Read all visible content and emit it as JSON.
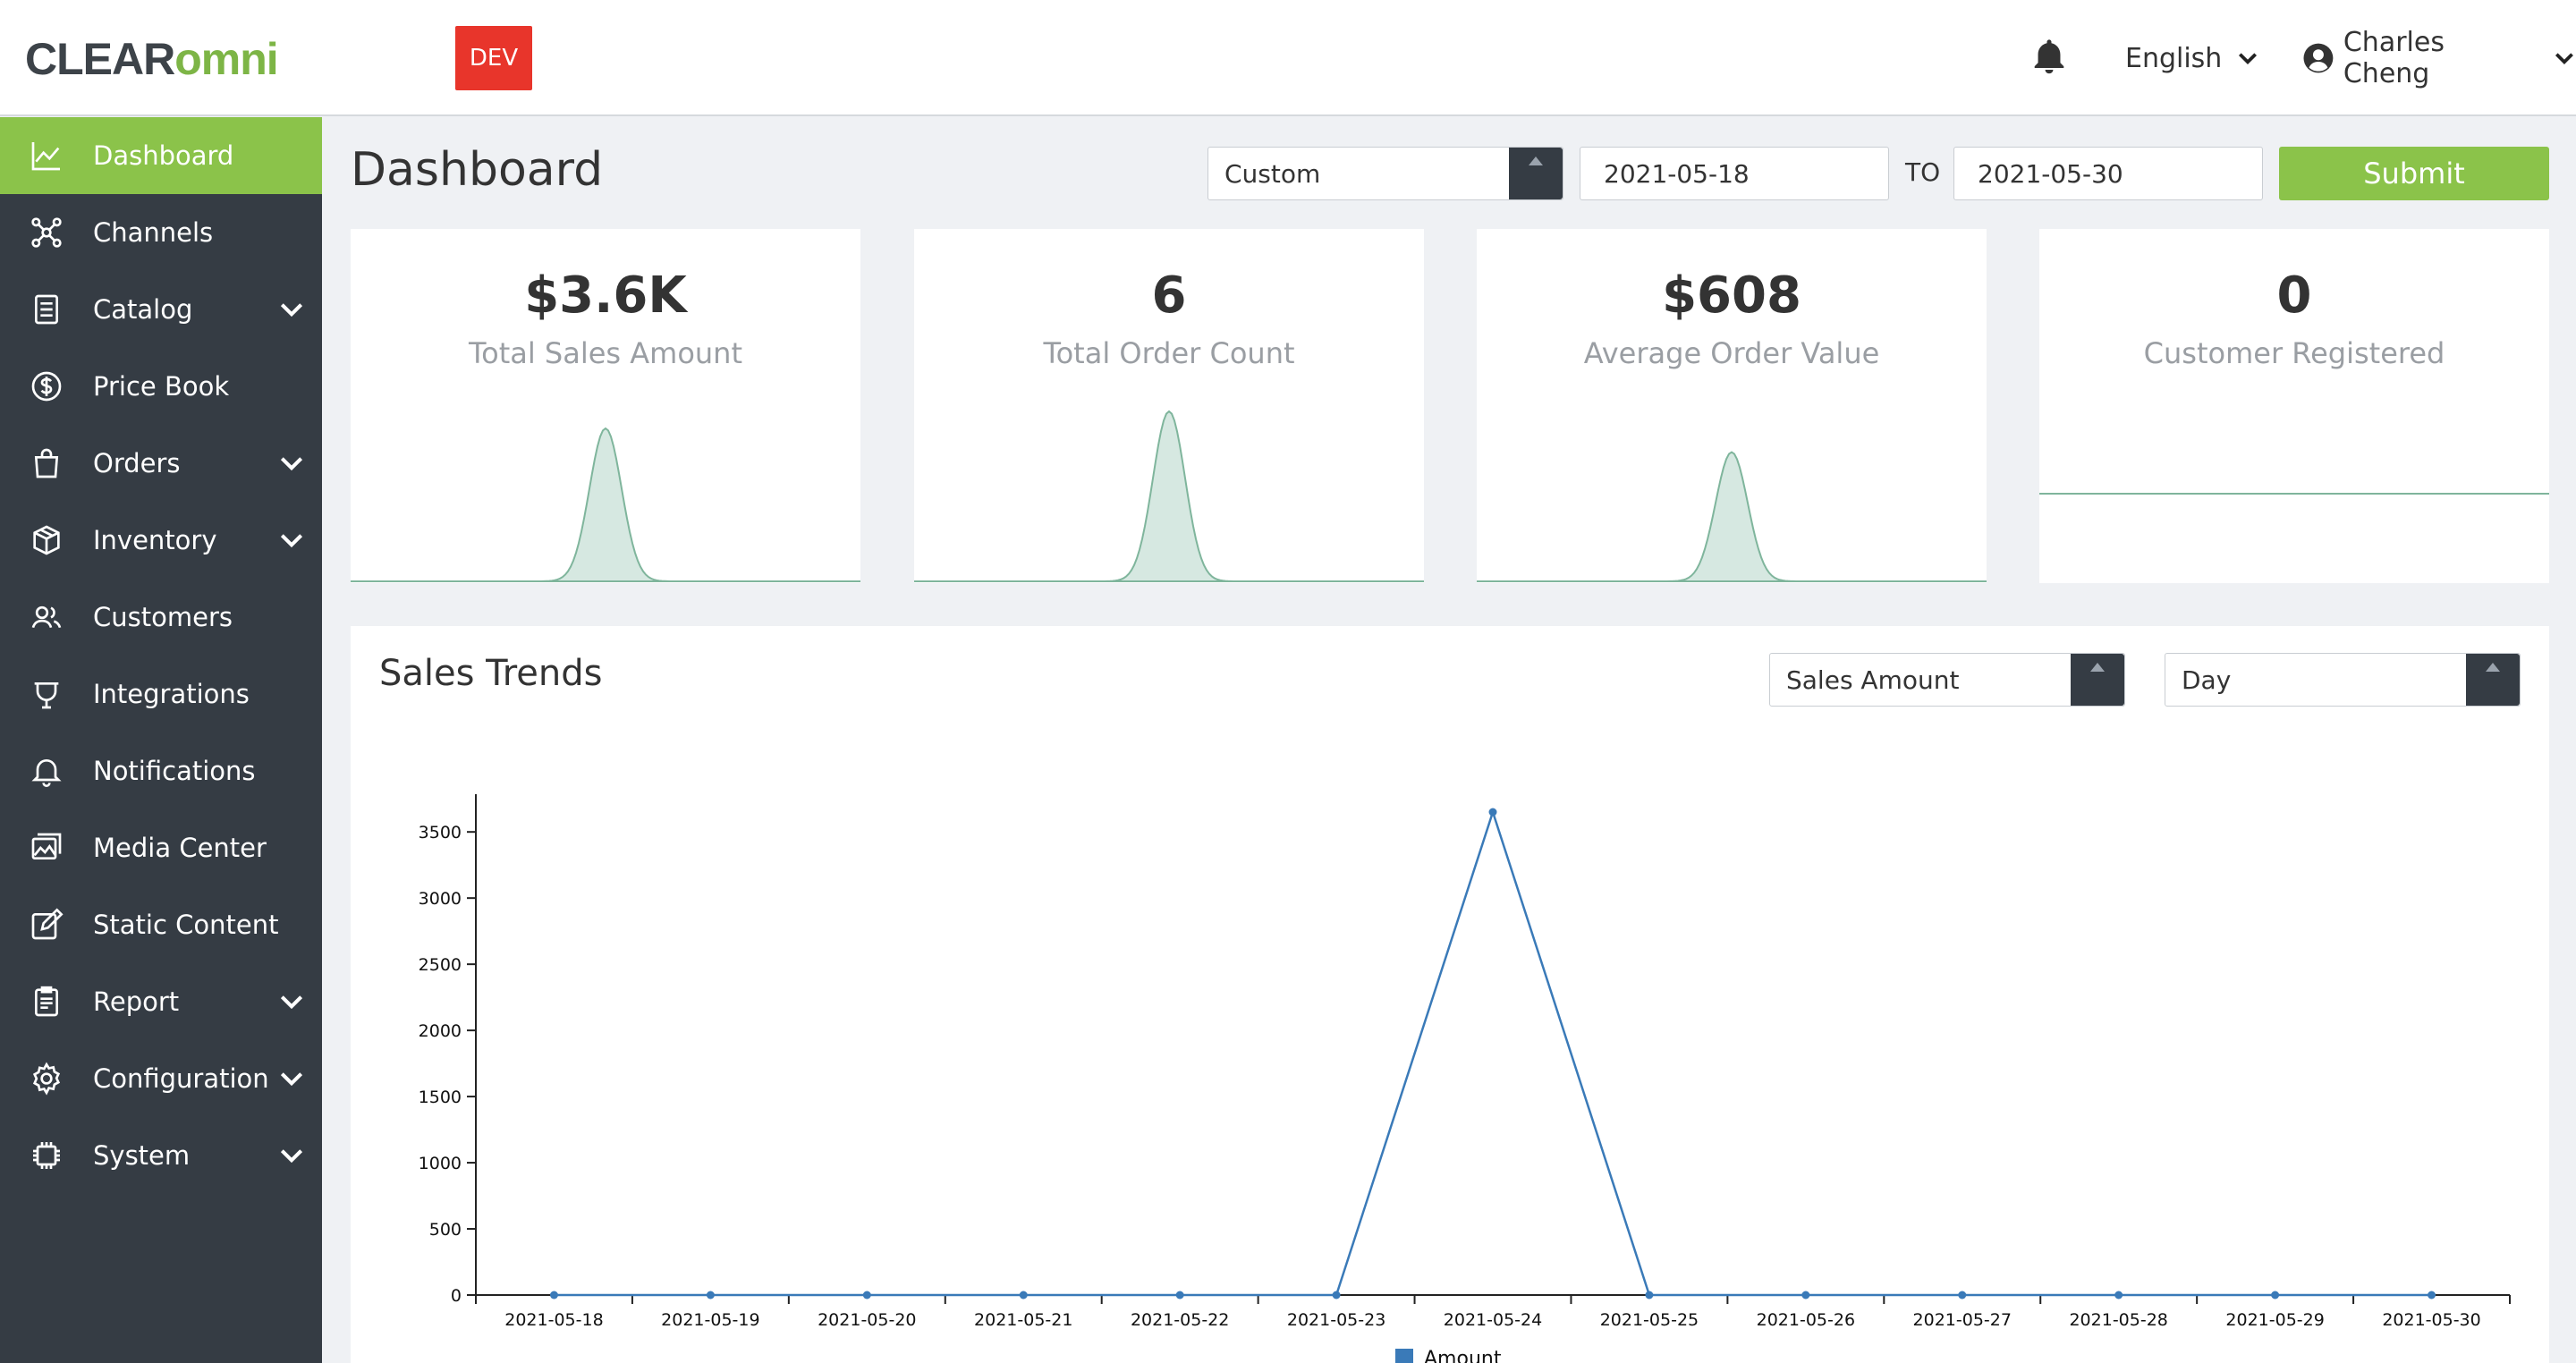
{
  "header": {
    "logo_main": "CLEAR",
    "logo_accent": "omni",
    "env_badge": "DEV",
    "language": "English",
    "user_name": "Charles Cheng"
  },
  "sidebar": {
    "items": [
      {
        "label": "Dashboard",
        "icon": "line-chart-icon",
        "active": true,
        "expandable": false
      },
      {
        "label": "Channels",
        "icon": "network-icon",
        "expandable": false
      },
      {
        "label": "Catalog",
        "icon": "document-icon",
        "expandable": true
      },
      {
        "label": "Price Book",
        "icon": "dollar-circle-icon",
        "expandable": false
      },
      {
        "label": "Orders",
        "icon": "shopping-bag-icon",
        "expandable": true
      },
      {
        "label": "Inventory",
        "icon": "box-icon",
        "expandable": true
      },
      {
        "label": "Customers",
        "icon": "users-icon",
        "expandable": false
      },
      {
        "label": "Integrations",
        "icon": "plug-icon",
        "expandable": false
      },
      {
        "label": "Notifications",
        "icon": "bell-icon",
        "expandable": false
      },
      {
        "label": "Media Center",
        "icon": "images-icon",
        "expandable": false
      },
      {
        "label": "Static Content",
        "icon": "edit-icon",
        "expandable": false
      },
      {
        "label": "Report",
        "icon": "clipboard-icon",
        "expandable": true
      },
      {
        "label": "Configuration",
        "icon": "gear-icon",
        "expandable": true
      },
      {
        "label": "System",
        "icon": "chip-icon",
        "expandable": true
      }
    ]
  },
  "main": {
    "title": "Dashboard",
    "range_select": "Custom",
    "date_from": "2021-05-18",
    "to_label": "TO",
    "date_to": "2021-05-30",
    "submit_label": "Submit"
  },
  "kpis": [
    {
      "value": "$3.6K",
      "label": "Total Sales Amount",
      "trend": "spike",
      "peak": 0.9
    },
    {
      "value": "6",
      "label": "Total Order Count",
      "trend": "spike",
      "peak": 1.0
    },
    {
      "value": "$608",
      "label": "Average Order Value",
      "trend": "spike",
      "peak": 0.76
    },
    {
      "value": "0",
      "label": "Customer Registered",
      "trend": "flat",
      "peak": 0.0
    }
  ],
  "trends": {
    "title": "Sales Trends",
    "metric_select": "Sales Amount",
    "interval_select": "Day"
  },
  "colors": {
    "sidebar_bg": "#353c44",
    "accent_green": "#8bc34a",
    "badge_red": "#e8352b",
    "line_blue": "#3a7ab8",
    "spark_fill": "#d6e8e1",
    "spark_stroke": "#7fb59c"
  },
  "chart_data": {
    "type": "line",
    "x": [
      "2021-05-18",
      "2021-05-19",
      "2021-05-20",
      "2021-05-21",
      "2021-05-22",
      "2021-05-23",
      "2021-05-24",
      "2021-05-25",
      "2021-05-26",
      "2021-05-27",
      "2021-05-28",
      "2021-05-29",
      "2021-05-30"
    ],
    "series": [
      {
        "name": "Amount",
        "values": [
          0,
          0,
          0,
          0,
          0,
          0,
          3650,
          0,
          0,
          0,
          0,
          0,
          0
        ]
      }
    ],
    "yticks": [
      0,
      500,
      1000,
      1500,
      2000,
      2500,
      3000,
      3500
    ],
    "ylim": [
      0,
      3650
    ],
    "legend": "bottom"
  }
}
